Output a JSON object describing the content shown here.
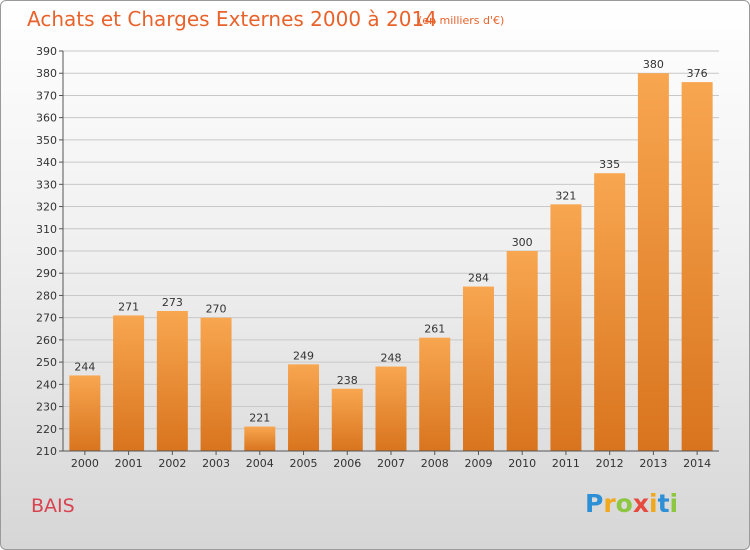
{
  "header": {
    "title": "Achats et Charges Externes 2000 à 2014",
    "subtitle": "(en milliers d'€)"
  },
  "footer": {
    "commune": "BAIS",
    "logo": {
      "letters": [
        "P",
        "r",
        "o",
        "x",
        "i",
        "t",
        "i"
      ],
      "colors": [
        "#2d8fd5",
        "#f0a81d",
        "#8dc63f",
        "#e64a3f",
        "#f0a81d",
        "#2d8fd5",
        "#8dc63f"
      ]
    }
  },
  "colors": {
    "bar_top": "#f8a650",
    "bar_bottom": "#d9741e",
    "grid": "#c8c8c8",
    "axis_text": "#333333"
  },
  "chart_data": {
    "type": "bar",
    "title": "Achats et Charges Externes 2000 à 2014",
    "subtitle": "(en milliers d'€)",
    "categories": [
      "2000",
      "2001",
      "2002",
      "2003",
      "2004",
      "2005",
      "2006",
      "2007",
      "2008",
      "2009",
      "2010",
      "2011",
      "2012",
      "2013",
      "2014"
    ],
    "values": [
      244,
      271,
      273,
      270,
      221,
      249,
      238,
      248,
      261,
      284,
      300,
      321,
      335,
      380,
      376
    ],
    "ylim": [
      210,
      390
    ],
    "yticks": [
      210,
      220,
      230,
      240,
      250,
      260,
      270,
      280,
      290,
      300,
      310,
      320,
      330,
      340,
      350,
      360,
      370,
      380,
      390
    ],
    "grid": true,
    "data_labels": true
  }
}
